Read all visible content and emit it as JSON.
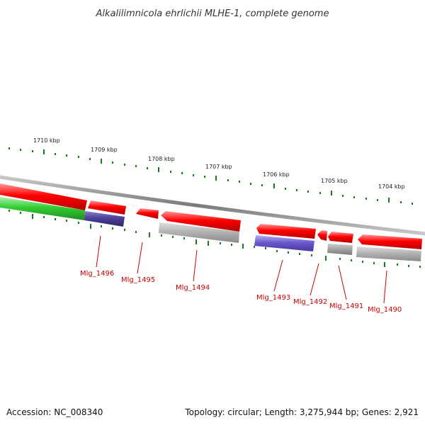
{
  "title": "Alkalilimnicola ehrlichii MLHE-1, complete genome",
  "footer": {
    "accession": "Accession: NC_008340",
    "summary": "Topology: circular; Length: 3,275,944 bp; Genes: 2,921"
  },
  "scale_labels": [
    "1710 kbp",
    "1709 kbp",
    "1708 kbp",
    "1707 kbp",
    "1706 kbp",
    "1705 kbp",
    "1704 kbp"
  ],
  "genes": [
    {
      "locus": "Mlg_1496",
      "track_color": "#4b3f99"
    },
    {
      "locus": "Mlg_1495",
      "track_color": "#ff0000"
    },
    {
      "locus": "Mlg_1494",
      "track_color": "#b3b3b3"
    },
    {
      "locus": "Mlg_1493",
      "track_color": "#6a5acd"
    },
    {
      "locus": "Mlg_1492",
      "track_color": "#ff0000"
    },
    {
      "locus": "Mlg_1491",
      "track_color": "#a6a6a6"
    },
    {
      "locus": "Mlg_1490",
      "track_color": "#b3b3b3"
    }
  ],
  "colors": {
    "forward_cds": "#ff0000",
    "backbone": "#808080",
    "gc_highlight": "#33cc33",
    "tick": "#1a7a1a",
    "label": "#cc0000"
  }
}
